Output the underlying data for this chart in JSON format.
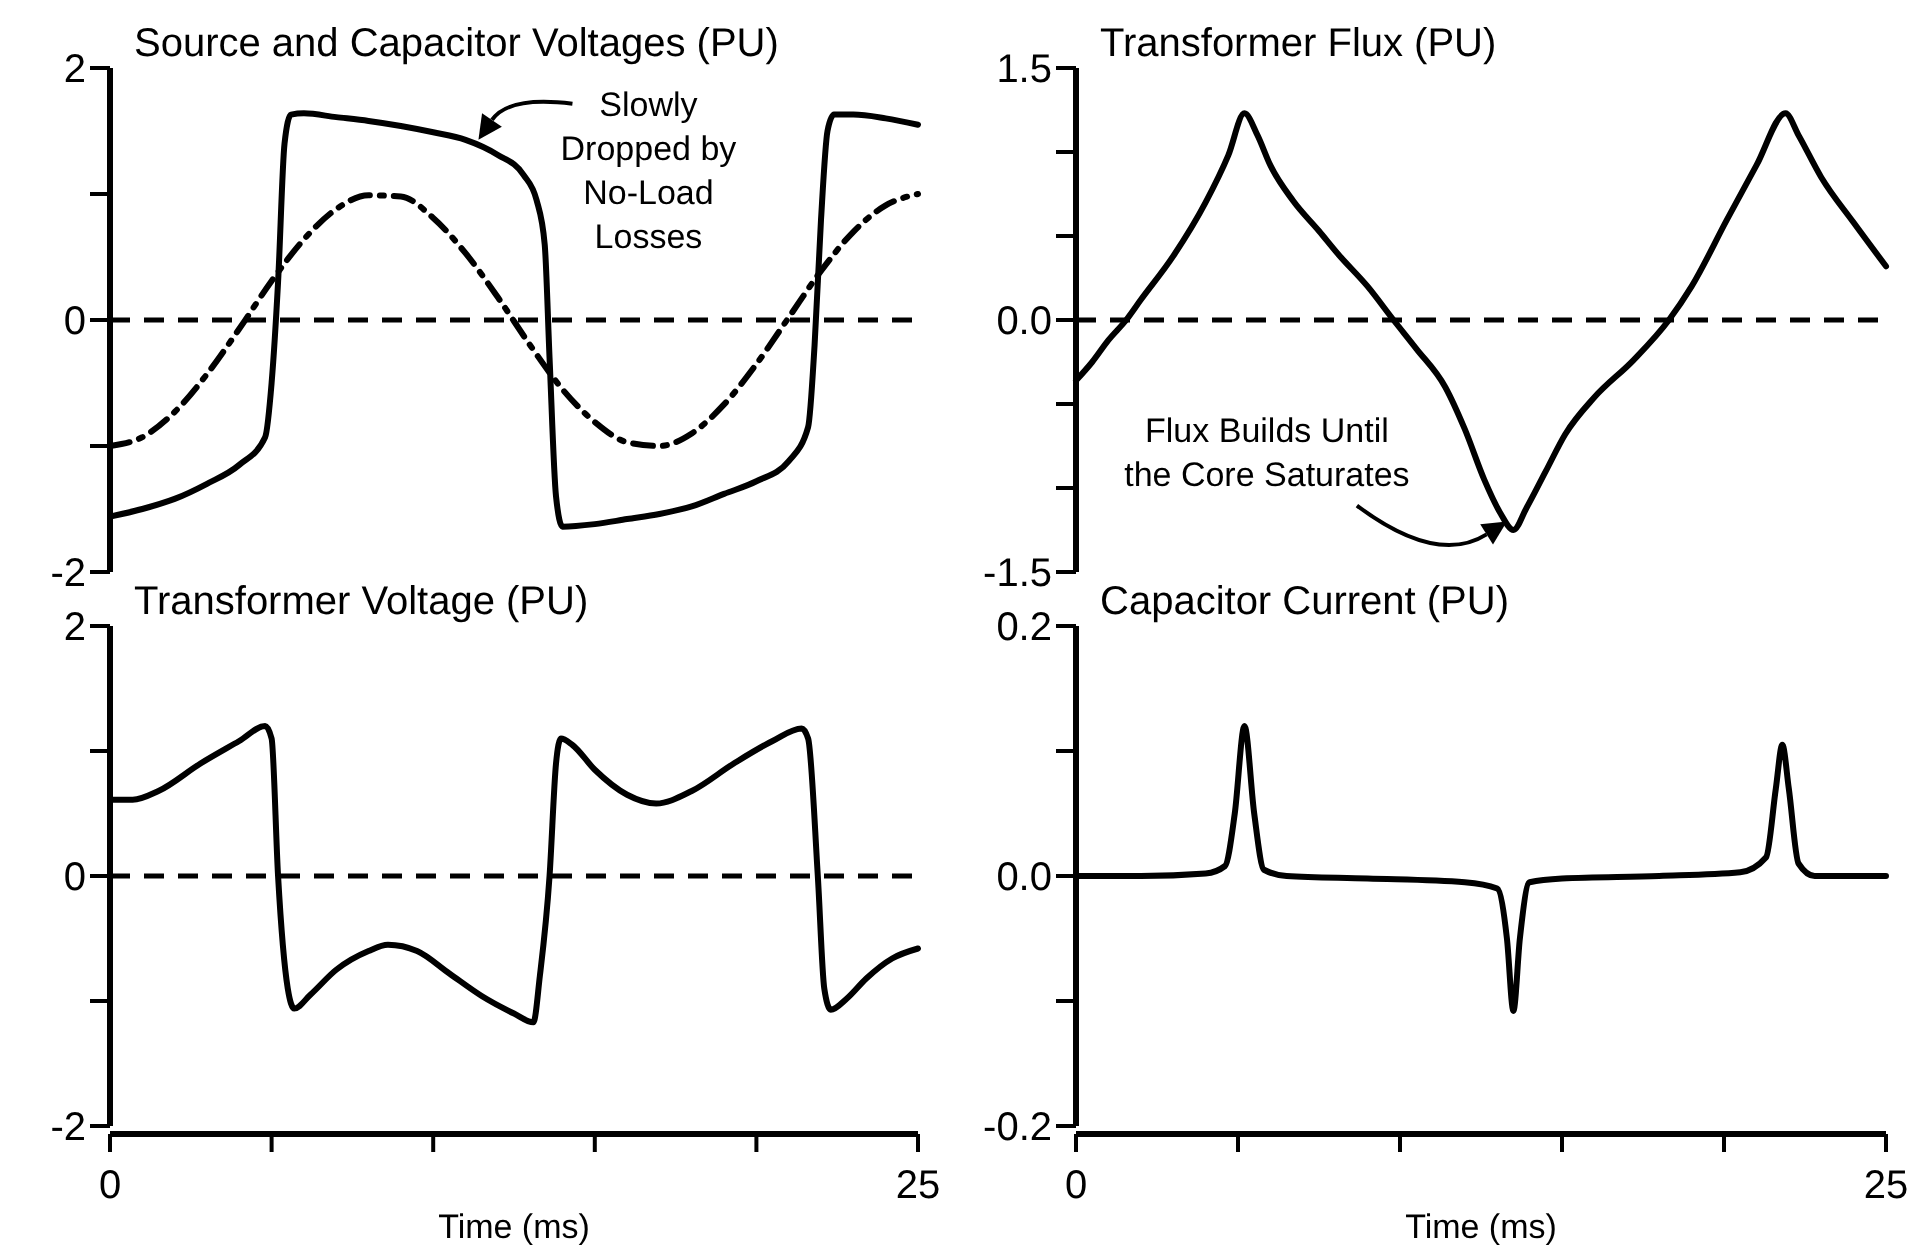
{
  "chart_data": [
    {
      "type": "line",
      "title": "Source and Capacitor Voltages (PU)",
      "xlim": [
        0,
        25
      ],
      "ylim": [
        -2,
        2
      ],
      "yticks": [
        2,
        {
          "value": 1,
          "label": null
        },
        0,
        {
          "value": -1,
          "label": null
        },
        -2
      ],
      "tick_labels": "y",
      "ref_lines": [
        {
          "axis": "y",
          "value": 0,
          "line_style": "dashed"
        }
      ],
      "annotations": [
        {
          "text": "Slowly\nDropped by\nNo-Load\nLosses",
          "x": 11.4,
          "y": 1.43
        }
      ],
      "series": [
        {
          "color": "#000000",
          "line_style": "solid",
          "x": [
            0,
            1,
            2,
            3,
            4,
            4.8,
            5.0,
            5.2,
            5.4,
            5.6,
            6,
            7,
            8,
            9,
            10,
            11,
            12,
            12.8,
            13.2,
            13.45,
            13.6,
            13.8,
            14.0,
            15,
            16,
            17,
            18,
            19,
            20,
            21,
            21.6,
            21.8,
            22.0,
            22.2,
            22.4,
            23,
            24,
            25
          ],
          "values": [
            -1.56,
            -1.5,
            -1.42,
            -1.3,
            -1.15,
            -0.93,
            -0.5,
            0.3,
            1.4,
            1.63,
            1.64,
            1.61,
            1.58,
            1.54,
            1.49,
            1.43,
            1.31,
            1.15,
            0.95,
            0.6,
            -0.3,
            -1.4,
            -1.64,
            -1.62,
            -1.58,
            -1.54,
            -1.48,
            -1.38,
            -1.28,
            -1.12,
            -0.85,
            -0.2,
            0.8,
            1.5,
            1.63,
            1.63,
            1.6,
            1.55
          ]
        },
        {
          "color": "#000000",
          "line_style": "dashdot",
          "x": [
            0,
            1,
            2,
            3,
            4,
            5,
            6,
            7,
            8,
            9,
            10,
            11,
            12,
            13,
            14,
            15,
            16,
            17,
            18,
            19,
            20,
            21,
            22,
            23,
            24,
            25
          ],
          "values": [
            -1,
            -0.93,
            -0.73,
            -0.43,
            -0.07,
            0.31,
            0.64,
            0.88,
            0.99,
            0.98,
            0.81,
            0.53,
            0.18,
            -0.2,
            -0.55,
            -0.81,
            -0.97,
            -1,
            -0.9,
            -0.67,
            -0.35,
            0.02,
            0.39,
            0.7,
            0.91,
            1
          ]
        }
      ]
    },
    {
      "type": "line",
      "title": "Transformer Flux (PU)",
      "xlim": [
        0,
        25
      ],
      "ylim": [
        -1.5,
        1.5
      ],
      "yticks": [
        1.5,
        {
          "value": 1,
          "label": null
        },
        {
          "value": 0.5,
          "label": null
        },
        {
          "value": 0,
          "label": "0.0"
        },
        {
          "value": -0.5,
          "label": null
        },
        {
          "value": -1,
          "label": null
        },
        -1.5
      ],
      "tick_labels": "y",
      "ref_lines": [
        {
          "axis": "y",
          "value": 0,
          "line_style": "dashed"
        }
      ],
      "annotations": [
        {
          "text": "Flux Builds Until\nthe Core Saturates",
          "x": 13.3,
          "y": -1.2
        }
      ],
      "series": [
        {
          "color": "#000000",
          "line_style": "solid",
          "x": [
            0,
            0.5,
            1,
            1.55,
            2,
            3,
            4,
            4.7,
            5.2,
            5.6,
            6,
            6.7,
            7.5,
            8.1,
            9,
            9.8,
            10.5,
            11.4,
            12,
            12.6,
            13.1,
            13.5,
            13.9,
            14.5,
            15.1,
            16,
            17.2,
            18.3,
            19,
            20.1,
            21,
            21.9,
            22.3,
            23,
            24,
            25
          ],
          "values": [
            -0.36,
            -0.25,
            -0.12,
            0,
            0.12,
            0.38,
            0.7,
            0.98,
            1.23,
            1.1,
            0.92,
            0.71,
            0.53,
            0.39,
            0.2,
            0,
            -0.17,
            -0.4,
            -0.65,
            -0.95,
            -1.15,
            -1.25,
            -1.12,
            -0.9,
            -0.68,
            -0.46,
            -0.24,
            0,
            0.2,
            0.6,
            0.92,
            1.23,
            1.1,
            0.85,
            0.58,
            0.32
          ]
        }
      ]
    },
    {
      "type": "line",
      "title": "Transformer Voltage (PU)",
      "xlabel": "Time (ms)",
      "xlim": [
        0,
        25
      ],
      "xticks": [
        {
          "value": 0,
          "label": "0"
        },
        {
          "value": 5,
          "label": null
        },
        {
          "value": 10,
          "label": null
        },
        {
          "value": 15,
          "label": null
        },
        {
          "value": 20,
          "label": null
        },
        {
          "value": 25,
          "label": "25"
        }
      ],
      "ylim": [
        -2,
        2
      ],
      "yticks": [
        2,
        {
          "value": 1,
          "label": null
        },
        0,
        {
          "value": -1,
          "label": null
        },
        -2
      ],
      "ref_lines": [
        {
          "axis": "y",
          "value": 0,
          "line_style": "dashed"
        }
      ],
      "series": [
        {
          "color": "#000000",
          "line_style": "solid",
          "x": [
            0,
            0.7,
            1.5,
            2.8,
            4,
            4.8,
            5.0,
            5.2,
            5.5,
            5.7,
            6.2,
            7,
            8,
            8.6,
            9.5,
            10.5,
            11.5,
            12.5,
            13.1,
            13.3,
            13.6,
            13.8,
            13.95,
            14.3,
            15,
            16,
            16.9,
            18,
            19.3,
            20.5,
            21.4,
            21.6,
            21.9,
            22.1,
            22.3,
            22.8,
            23.4,
            24.2,
            25
          ],
          "values": [
            0.61,
            0.61,
            0.68,
            0.9,
            1.08,
            1.2,
            1.1,
            0,
            -0.9,
            -1.06,
            -0.95,
            -0.75,
            -0.6,
            -0.55,
            -0.6,
            -0.78,
            -0.96,
            -1.1,
            -1.17,
            -0.8,
            0,
            0.9,
            1.1,
            1.05,
            0.85,
            0.65,
            0.58,
            0.68,
            0.9,
            1.08,
            1.18,
            1.1,
            0,
            -0.9,
            -1.07,
            -0.98,
            -0.82,
            -0.66,
            -0.58
          ]
        }
      ]
    },
    {
      "type": "line",
      "title": "Capacitor Current (PU)",
      "xlabel": "Time (ms)",
      "xlim": [
        0,
        25
      ],
      "xticks": [
        {
          "value": 0,
          "label": "0"
        },
        {
          "value": 5,
          "label": null
        },
        {
          "value": 10,
          "label": null
        },
        {
          "value": 15,
          "label": null
        },
        {
          "value": 20,
          "label": null
        },
        {
          "value": 25,
          "label": "25"
        }
      ],
      "ylim": [
        -0.2,
        0.2
      ],
      "yticks": [
        0.2,
        {
          "value": 0.1,
          "label": null
        },
        {
          "value": 0,
          "label": "0.0"
        },
        {
          "value": -0.1,
          "label": null
        },
        -0.2
      ],
      "series": [
        {
          "color": "#000000",
          "line_style": "solid",
          "x": [
            0,
            2,
            4,
            4.6,
            4.9,
            5.2,
            5.5,
            5.8,
            6.5,
            9,
            12,
            13,
            13.3,
            13.5,
            13.7,
            14,
            15,
            18,
            20.5,
            21.3,
            21.6,
            21.8,
            22.0,
            22.3,
            22.8,
            25
          ],
          "values": [
            0,
            0,
            0.002,
            0.008,
            0.05,
            0.12,
            0.05,
            0.005,
            0,
            -0.002,
            -0.005,
            -0.01,
            -0.05,
            -0.108,
            -0.05,
            -0.005,
            -0.002,
            0,
            0.003,
            0.015,
            0.07,
            0.105,
            0.07,
            0.01,
            0,
            0
          ]
        }
      ]
    }
  ]
}
